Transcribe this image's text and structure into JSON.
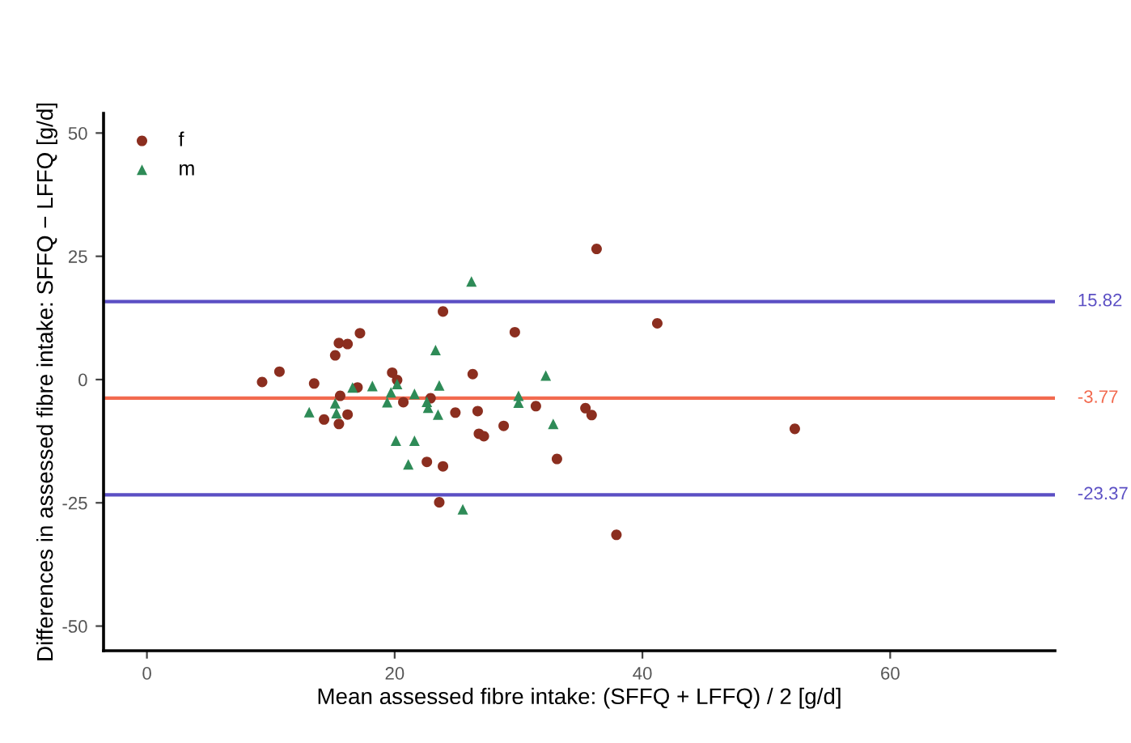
{
  "chart_data": {
    "type": "scatter",
    "xlabel": "Mean assessed fibre intake: (SFFQ + LFFQ) / 2 [g/d]",
    "ylabel": "Differences in assessed fibre intake: SFFQ − LFFQ [g/d]",
    "series": [
      {
        "name": "f",
        "color": "#8b2e1f",
        "marker": "circle",
        "x": [
          9.3,
          10.7,
          13.5,
          15.2,
          15.5,
          16.2,
          17.2,
          17.0,
          15.6,
          14.3,
          15.5,
          16.2,
          36.3,
          23.9,
          29.7,
          41.2,
          26.3,
          19.8,
          20.2,
          20.7,
          22.9,
          24.9,
          26.7,
          26.8,
          27.2,
          28.8,
          31.4,
          35.4,
          35.9,
          33.1,
          22.6,
          23.9,
          23.6,
          37.9,
          52.3
        ],
        "values": [
          -0.5,
          1.6,
          -0.8,
          4.9,
          7.4,
          7.2,
          9.4,
          -1.6,
          -3.3,
          -8.1,
          -9.0,
          -7.1,
          26.5,
          13.8,
          9.6,
          11.4,
          1.1,
          1.4,
          -0.1,
          -4.6,
          -3.8,
          -6.7,
          -6.4,
          -11.0,
          -11.5,
          -9.4,
          -5.4,
          -5.8,
          -7.2,
          -16.1,
          -16.7,
          -17.6,
          -24.9,
          -31.5,
          -10.0
        ]
      },
      {
        "name": "m",
        "color": "#2e8b57",
        "marker": "triangle",
        "x": [
          13.1,
          15.2,
          15.3,
          16.6,
          18.2,
          19.4,
          26.2,
          23.3,
          32.2,
          23.6,
          19.7,
          20.2,
          21.6,
          22.6,
          22.7,
          23.5,
          30.0,
          30.0,
          32.8,
          20.1,
          21.6,
          21.1,
          25.5
        ],
        "values": [
          -6.6,
          -4.8,
          -6.8,
          -1.6,
          -1.3,
          -4.6,
          19.9,
          6.0,
          0.8,
          -1.2,
          -2.6,
          -0.9,
          -2.9,
          -4.5,
          -5.7,
          -7.1,
          -3.3,
          -4.7,
          -9.0,
          -12.4,
          -12.4,
          -17.2,
          -26.3
        ]
      }
    ],
    "ref_lines": [
      {
        "axis": "y",
        "value": 15.82,
        "label": "15.82",
        "color": "#5b4fc4"
      },
      {
        "axis": "y",
        "value": -3.77,
        "label": "-3.77",
        "color": "#f26a4f"
      },
      {
        "axis": "y",
        "value": -23.37,
        "label": "-23.37",
        "color": "#5b4fc4"
      }
    ],
    "xlim": [
      -3.5,
      73.3
    ],
    "ylim": [
      -55,
      54
    ],
    "xticks": [
      0,
      20,
      40,
      60
    ],
    "yticks": [
      -50,
      -25,
      0,
      25,
      50
    ],
    "grid": false,
    "legend": "top left"
  }
}
